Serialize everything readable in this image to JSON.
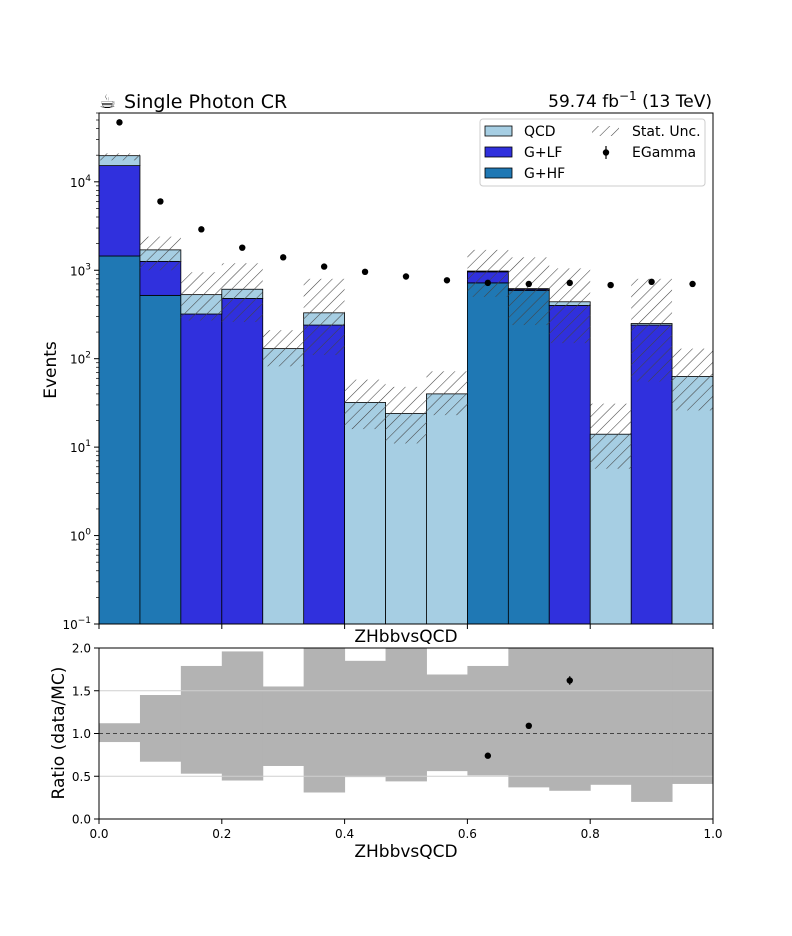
{
  "header": {
    "title_icon": "coffee-cup-icon",
    "title": "Single Photon CR",
    "lumi_prefix": "59.74 fb",
    "lumi_sup": "−1",
    "lumi_suffix": " (13 TeV)"
  },
  "colors": {
    "qcd": "#a6cee3",
    "glf": "#3030dd",
    "ghf": "#1f78b4",
    "data": "#000000",
    "unc_band": "#b3b3b3"
  },
  "chart_data": [
    {
      "type": "bar",
      "stacked": true,
      "log_y": true,
      "xlabel": "ZHbbvsQCD",
      "ylabel": "Events",
      "xlim": [
        0,
        1
      ],
      "ylim": [
        0.1,
        60000
      ],
      "yticks": [
        "10⁻¹",
        "10⁰",
        "10¹",
        "10²",
        "10³",
        "10⁴"
      ],
      "yticks_labels": {
        "base": "10",
        "exponents": [
          "−1",
          "0",
          "1",
          "2",
          "3",
          "4"
        ]
      },
      "bin_edges": [
        0,
        0.0667,
        0.1333,
        0.2,
        0.2667,
        0.3333,
        0.4,
        0.4667,
        0.5333,
        0.6,
        0.6667,
        0.7333,
        0.8,
        0.8667,
        0.9333,
        1.0
      ],
      "series": [
        {
          "name": "G+HF",
          "values": [
            1450,
            520,
            0,
            0,
            0,
            0,
            0,
            0,
            0,
            720,
            590,
            0,
            0,
            0,
            0
          ]
        },
        {
          "name": "G+LF",
          "values": [
            13800,
            740,
            320,
            480,
            0,
            240,
            0,
            0,
            0,
            240,
            20,
            400,
            0,
            240,
            0
          ]
        },
        {
          "name": "QCD",
          "values": [
            4500,
            440,
            210,
            130,
            130,
            90,
            32,
            24,
            40,
            20,
            10,
            40,
            14,
            10,
            63
          ]
        }
      ],
      "stat_unc": {
        "name": "Stat. Unc.",
        "up": [
          21000,
          2400,
          950,
          1200,
          210,
          800,
          58,
          48,
          72,
          1700,
          1400,
          1050,
          31,
          800,
          130
        ],
        "down": [
          17500,
          1000,
          270,
          260,
          82,
          110,
          16,
          11,
          23,
          500,
          240,
          150,
          5.7,
          55,
          26
        ]
      },
      "data_series": {
        "name": "EGamma",
        "x": [
          0.0333,
          0.1,
          0.1667,
          0.2333,
          0.3,
          0.3667,
          0.4333,
          0.5,
          0.5667,
          0.6333,
          0.7,
          0.7667,
          0.8333,
          0.9,
          0.9667
        ],
        "y": [
          47000,
          6000,
          2900,
          1800,
          1400,
          1100,
          960,
          850,
          770,
          720,
          700,
          720,
          680,
          740,
          700
        ]
      },
      "legend": {
        "placement": "top-right",
        "entries": [
          "QCD",
          "G+LF",
          "G+HF",
          "Stat. Unc.",
          "EGamma"
        ]
      }
    },
    {
      "type": "scatter",
      "xlabel": "ZHbbvsQCD",
      "ylabel": "Ratio (data/MC)",
      "xlim": [
        0,
        1
      ],
      "ylim": [
        0,
        2
      ],
      "xticks": [
        "0.0",
        "0.2",
        "0.4",
        "0.6",
        "0.8",
        "1.0"
      ],
      "yticks": [
        "0.0",
        "0.5",
        "1.0",
        "1.5",
        "2.0"
      ],
      "reference_line": 1.0,
      "unc_band": {
        "up": [
          1.12,
          1.45,
          1.79,
          1.96,
          1.55,
          2.0,
          1.85,
          2.0,
          1.69,
          1.79,
          2.0,
          2.0,
          2.0,
          2.0,
          2.0
        ],
        "down": [
          0.9,
          0.67,
          0.53,
          0.45,
          0.62,
          0.31,
          0.49,
          0.44,
          0.56,
          0.51,
          0.37,
          0.33,
          0.4,
          0.2,
          0.41
        ]
      },
      "points": {
        "x": [
          0.6333,
          0.7,
          0.7667
        ],
        "y": [
          0.74,
          1.09,
          1.62
        ],
        "err": [
          0.02,
          0.03,
          0.05
        ]
      }
    }
  ]
}
